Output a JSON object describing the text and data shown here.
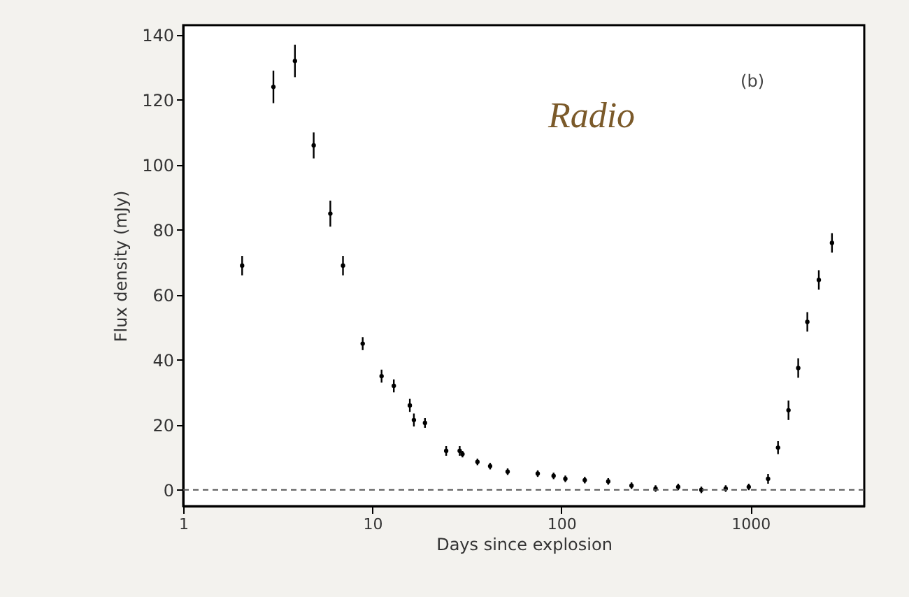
{
  "chart_data": {
    "type": "scatter",
    "xlabel": "Days since explosion",
    "ylabel": "Flux density (mJy)",
    "annotations": [
      "(b)",
      "Radio"
    ],
    "x": [
      2.05,
      3.0,
      3.9,
      4.9,
      6.0,
      7.0,
      8.9,
      11.2,
      13,
      15.8,
      16.6,
      19,
      24.6,
      29,
      30,
      36,
      42,
      52,
      75,
      91,
      105,
      133,
      177,
      235,
      315,
      415,
      550,
      740,
      980,
      1240,
      1400,
      1590,
      1790,
      2000,
      2300,
      2700
    ],
    "series": [
      {
        "color": "#000000",
        "values": [
          69,
          124,
          132,
          106,
          85,
          69,
          45,
          35,
          32,
          26,
          21.5,
          20.6,
          12,
          12,
          11,
          8.6,
          7.3,
          5.6,
          5,
          4.3,
          3.4,
          3,
          2.6,
          1.3,
          0.4,
          0.9,
          0,
          0.4,
          0.9,
          3.4,
          13,
          24.5,
          37.5,
          51.7,
          64.6,
          76
        ],
        "errors": [
          3,
          5,
          5,
          4,
          4,
          3,
          2,
          2,
          2,
          2,
          2,
          1.5,
          1.5,
          1.5,
          1,
          1,
          1,
          1,
          1,
          1,
          1,
          1,
          1,
          1,
          1,
          1,
          1,
          1,
          1,
          1.5,
          2,
          3,
          3,
          3,
          3,
          3
        ]
      }
    ],
    "marker": "none",
    "log": "x",
    "xlim": [
      1,
      4000
    ],
    "xticks": [
      1,
      10,
      100,
      1000
    ],
    "ylim": [
      -5,
      143
    ],
    "yticks": [
      0,
      20,
      40,
      60,
      80,
      100,
      120,
      140
    ],
    "ref_lines": [
      {
        "axis": "y",
        "value": 0,
        "color": "#555555",
        "line_style": "dashed"
      }
    ],
    "grid": false
  }
}
